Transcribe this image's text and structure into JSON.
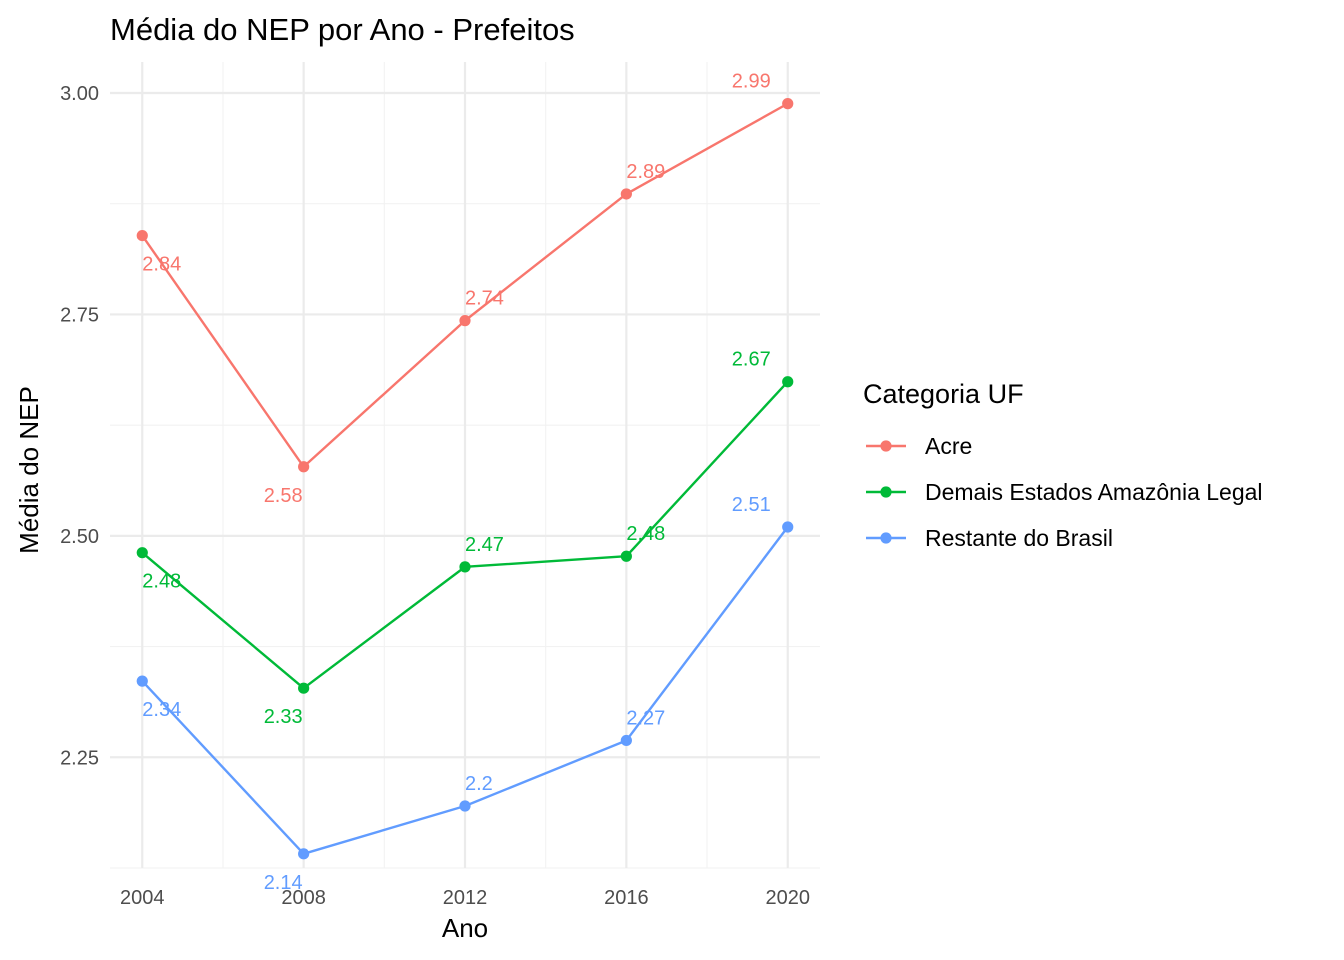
{
  "chart_data": {
    "type": "line",
    "title": "Média do NEP por Ano - Prefeitos",
    "xlabel": "Ano",
    "ylabel": "Média do NEP",
    "x": [
      2004,
      2008,
      2012,
      2016,
      2020
    ],
    "xlim": [
      2003.2,
      2020.8
    ],
    "ylim": [
      2.125,
      3.035
    ],
    "x_ticks": [
      "2004",
      "2008",
      "2012",
      "2016",
      "2020"
    ],
    "y_ticks": [
      "2.25",
      "2.50",
      "2.75",
      "3.00"
    ],
    "grid": true,
    "legend": {
      "title": "Categoria UF",
      "position": "right"
    },
    "series": [
      {
        "name": "Acre",
        "color": "#F8766D",
        "values": [
          2.839,
          2.578,
          2.743,
          2.886,
          2.988
        ],
        "labels": [
          "2.84",
          "2.58",
          "2.74",
          "2.89",
          "2.99"
        ]
      },
      {
        "name": "Demais Estados Amazônia Legal",
        "color": "#00BA38",
        "values": [
          2.481,
          2.328,
          2.465,
          2.477,
          2.674
        ],
        "labels": [
          "2.48",
          "2.33",
          "2.47",
          "2.48",
          "2.67"
        ]
      },
      {
        "name": "Restante do Brasil",
        "color": "#619CFF",
        "values": [
          2.336,
          2.141,
          2.195,
          2.269,
          2.51
        ],
        "labels": [
          "2.34",
          "2.14",
          "2.2",
          "2.27",
          "2.51"
        ]
      }
    ]
  }
}
